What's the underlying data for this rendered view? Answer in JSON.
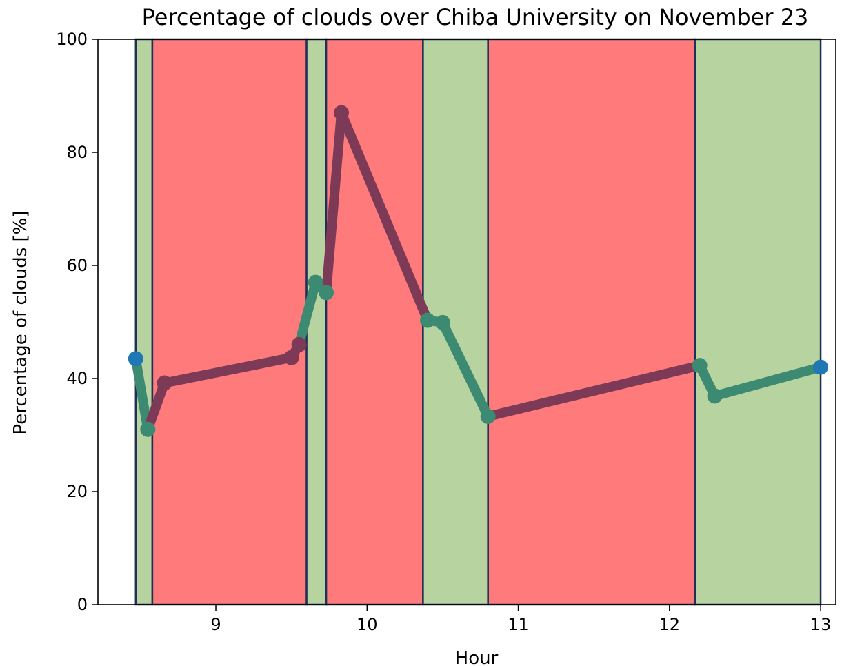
{
  "chart_data": {
    "type": "line",
    "title": "Percentage of clouds over Chiba University on November 23",
    "xlabel": "Hour",
    "ylabel": "Percentage of clouds [%]",
    "xlim": [
      8.22,
      13.1
    ],
    "ylim": [
      0,
      100
    ],
    "x_ticks": [
      9,
      10,
      11,
      12,
      13
    ],
    "y_ticks": [
      0,
      20,
      40,
      60,
      80,
      100
    ],
    "grid": false,
    "x": [
      8.47,
      8.55,
      8.66,
      9.5,
      9.55,
      9.66,
      9.73,
      9.83,
      10.4,
      10.5,
      10.8,
      12.2,
      12.3,
      13.0
    ],
    "y": [
      43.5,
      31,
      39.2,
      43.7,
      46,
      57,
      55.2,
      87,
      50.3,
      49.9,
      33.3,
      42.3,
      36.9,
      42
    ],
    "bands": [
      {
        "x0": 8.47,
        "x1": 8.58,
        "state": "clear",
        "color": "#b7d4a0"
      },
      {
        "x0": 8.58,
        "x1": 9.6,
        "state": "cloudy",
        "color": "#ff7b7b"
      },
      {
        "x0": 9.6,
        "x1": 9.73,
        "state": "clear",
        "color": "#b7d4a0"
      },
      {
        "x0": 9.73,
        "x1": 10.37,
        "state": "cloudy",
        "color": "#ff7b7b"
      },
      {
        "x0": 10.37,
        "x1": 10.8,
        "state": "clear",
        "color": "#b7d4a0"
      },
      {
        "x0": 10.8,
        "x1": 12.17,
        "state": "cloudy",
        "color": "#ff7b7b"
      },
      {
        "x0": 12.17,
        "x1": 13.0,
        "state": "clear",
        "color": "#b7d4a0"
      }
    ],
    "colors": {
      "clear_line": "#3d8a72",
      "cloudy_line": "#7d3a57",
      "marker": "#1f77b4"
    }
  }
}
